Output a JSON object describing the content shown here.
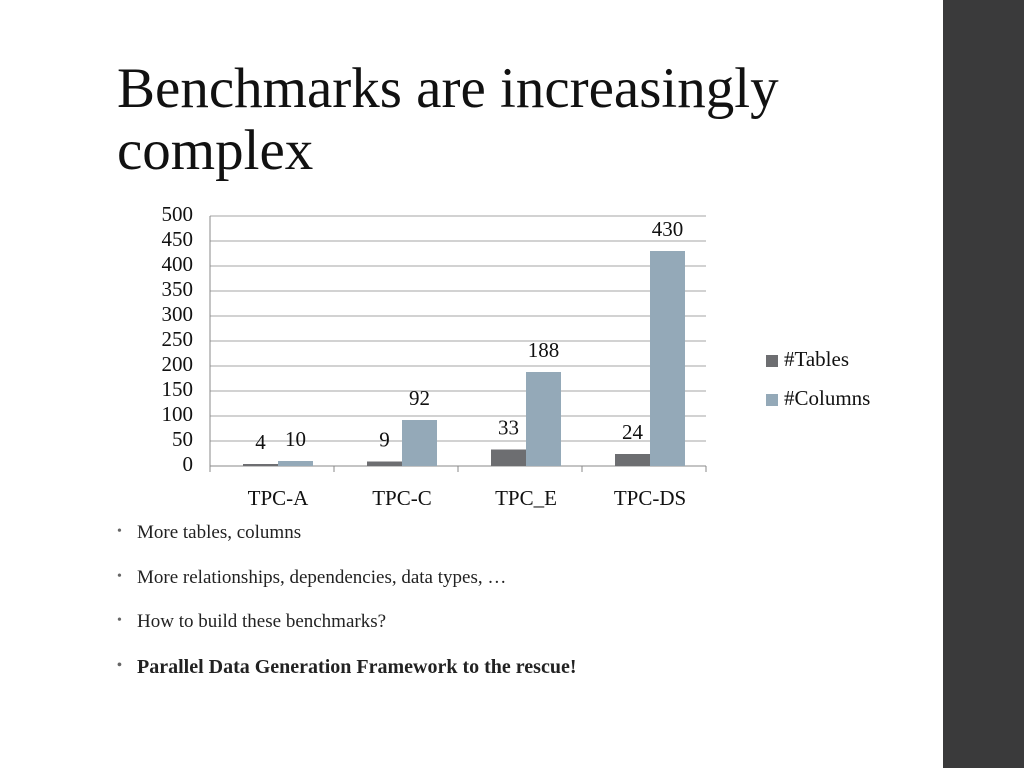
{
  "title": "Benchmarks are increasingly complex",
  "bullets": [
    {
      "text": "More tables, columns",
      "bold": false
    },
    {
      "text": "More relationships, dependencies, data types, …",
      "bold": false
    },
    {
      "text": "How to build these benchmarks?",
      "bold": false
    },
    {
      "text": "Parallel Data Generation Framework to the rescue!",
      "bold": true
    }
  ],
  "chart_data": {
    "type": "bar",
    "categories": [
      "TPC-A",
      "TPC-C",
      "TPC_E",
      "TPC-DS"
    ],
    "series": [
      {
        "name": "#Tables",
        "color": "#6d6e71",
        "values": [
          4,
          9,
          33,
          24
        ]
      },
      {
        "name": "#Columns",
        "color": "#94a9b8",
        "values": [
          10,
          92,
          188,
          430
        ]
      }
    ],
    "ylim": [
      0,
      500
    ],
    "yticks": [
      0,
      50,
      100,
      150,
      200,
      250,
      300,
      350,
      400,
      450,
      500
    ],
    "grid": true,
    "legend": "right",
    "data_labels": true
  }
}
